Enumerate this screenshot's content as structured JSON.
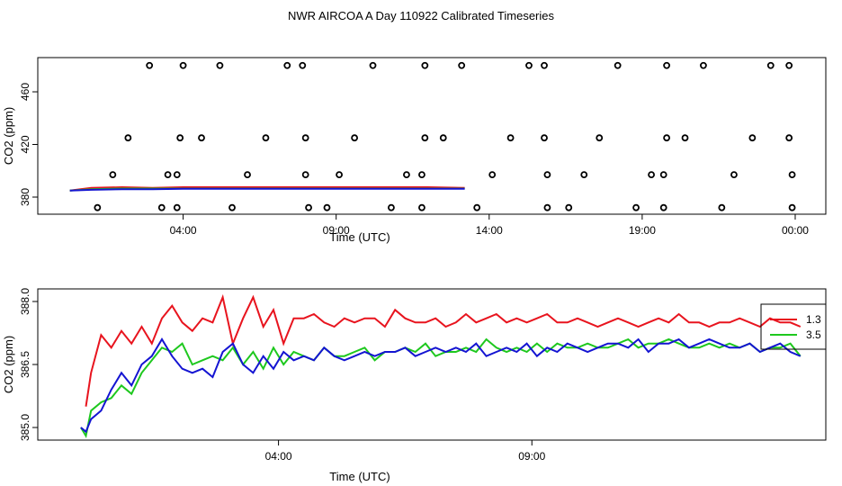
{
  "title": "NWR AIRCOA A  Day 110922  Calibrated Timeseries",
  "colors": {
    "red": "#e8141e",
    "green": "#1ec81e",
    "blue": "#1414d2",
    "axis": "#000000"
  },
  "chart_data": [
    {
      "type": "scatter",
      "xlabel": "Time (UTC)",
      "ylabel": "CO2 (ppm)",
      "xlim": [
        -0.75,
        25.0
      ],
      "ylim": [
        367,
        486
      ],
      "x_ticks": [
        {
          "value": 4,
          "label": "04:00"
        },
        {
          "value": 9,
          "label": "09:00"
        },
        {
          "value": 14,
          "label": "14:00"
        },
        {
          "value": 19,
          "label": "19:00"
        },
        {
          "value": 24,
          "label": "00:00"
        }
      ],
      "y_ticks": [
        {
          "value": 380,
          "label": "380"
        },
        {
          "value": 420,
          "label": "420"
        },
        {
          "value": 460,
          "label": "460"
        }
      ],
      "open_circles": [
        [
          1.2,
          372
        ],
        [
          1.7,
          397
        ],
        [
          2.2,
          425
        ],
        [
          2.9,
          480
        ],
        [
          3.3,
          372
        ],
        [
          3.5,
          397
        ],
        [
          3.8,
          397
        ],
        [
          3.9,
          425
        ],
        [
          4.0,
          480
        ],
        [
          3.8,
          372
        ],
        [
          4.6,
          425
        ],
        [
          5.2,
          480
        ],
        [
          5.6,
          372
        ],
        [
          6.1,
          397
        ],
        [
          6.7,
          425
        ],
        [
          7.4,
          480
        ],
        [
          7.9,
          480
        ],
        [
          8.0,
          425
        ],
        [
          8.0,
          397
        ],
        [
          8.1,
          372
        ],
        [
          8.7,
          372
        ],
        [
          9.1,
          397
        ],
        [
          9.6,
          425
        ],
        [
          10.2,
          480
        ],
        [
          10.8,
          372
        ],
        [
          11.3,
          397
        ],
        [
          11.8,
          397
        ],
        [
          11.9,
          425
        ],
        [
          11.9,
          480
        ],
        [
          11.8,
          372
        ],
        [
          12.5,
          425
        ],
        [
          13.1,
          480
        ],
        [
          13.6,
          372
        ],
        [
          14.1,
          397
        ],
        [
          14.7,
          425
        ],
        [
          15.3,
          480
        ],
        [
          15.8,
          480
        ],
        [
          15.8,
          425
        ],
        [
          15.9,
          397
        ],
        [
          15.9,
          372
        ],
        [
          16.6,
          372
        ],
        [
          17.1,
          397
        ],
        [
          17.6,
          425
        ],
        [
          18.2,
          480
        ],
        [
          18.8,
          372
        ],
        [
          19.3,
          397
        ],
        [
          19.7,
          397
        ],
        [
          19.8,
          425
        ],
        [
          19.8,
          480
        ],
        [
          19.7,
          372
        ],
        [
          20.4,
          425
        ],
        [
          21.0,
          480
        ],
        [
          21.6,
          372
        ],
        [
          22.0,
          397
        ],
        [
          22.6,
          425
        ],
        [
          23.2,
          480
        ],
        [
          23.8,
          480
        ],
        [
          23.8,
          425
        ],
        [
          23.9,
          397
        ],
        [
          23.9,
          372
        ]
      ],
      "series": [
        {
          "color": "red",
          "x": [
            0.3,
            1.0,
            2.0,
            3.0,
            4.0,
            6.0,
            8.0,
            10.0,
            12.0,
            13.2
          ],
          "y": [
            385,
            387,
            387.5,
            387,
            387.5,
            387.5,
            387.5,
            387.5,
            387.5,
            387
          ]
        },
        {
          "color": "green",
          "x": [
            0.3,
            1.0,
            2.0,
            3.0,
            4.0,
            6.0,
            8.0,
            10.0,
            12.0,
            13.2
          ],
          "y": [
            385,
            386,
            386.5,
            386.5,
            386.5,
            386.5,
            386.5,
            386.5,
            386.5,
            386.5
          ]
        },
        {
          "color": "blue",
          "x": [
            0.3,
            1.0,
            2.0,
            3.0,
            4.0,
            6.0,
            8.0,
            10.0,
            12.0,
            13.2
          ],
          "y": [
            385,
            385.5,
            386,
            386,
            386.3,
            386.3,
            386.3,
            386.3,
            386.3,
            386.3
          ]
        }
      ]
    },
    {
      "type": "line",
      "xlabel": "Time (UTC)",
      "ylabel": "CO2 (ppm)",
      "xlim": [
        -0.75,
        14.8
      ],
      "ylim": [
        384.7,
        388.3
      ],
      "x_ticks": [
        {
          "value": 4,
          "label": "04:00"
        },
        {
          "value": 9,
          "label": "09:00"
        }
      ],
      "y_ticks": [
        {
          "value": 385.0,
          "label": "385.0"
        },
        {
          "value": 386.5,
          "label": "386.5"
        },
        {
          "value": 388.0,
          "label": "388.0"
        }
      ],
      "legend": {
        "placement": "right",
        "entries": [
          {
            "label": "1.3",
            "color": "red"
          },
          {
            "label": "3.5",
            "color": "green"
          }
        ]
      },
      "series": [
        {
          "color": "red",
          "x": [
            0.2,
            0.3,
            0.5,
            0.7,
            0.9,
            1.1,
            1.3,
            1.5,
            1.7,
            1.9,
            2.1,
            2.3,
            2.5,
            2.7,
            2.9,
            3.1,
            3.3,
            3.5,
            3.7,
            3.9,
            4.1,
            4.3,
            4.5,
            4.7,
            4.9,
            5.1,
            5.3,
            5.5,
            5.7,
            5.9,
            6.1,
            6.3,
            6.5,
            6.7,
            6.9,
            7.1,
            7.3,
            7.5,
            7.7,
            7.9,
            8.1,
            8.3,
            8.5,
            8.7,
            8.9,
            9.1,
            9.3,
            9.5,
            9.7,
            9.9,
            10.1,
            10.3,
            10.5,
            10.7,
            10.9,
            11.1,
            11.3,
            11.5,
            11.7,
            11.9,
            12.1,
            12.3,
            12.5,
            12.7,
            12.9,
            13.1,
            13.3,
            13.5,
            13.7,
            13.9,
            14.1,
            14.3
          ],
          "y": [
            385.5,
            386.3,
            387.2,
            386.9,
            387.3,
            387.0,
            387.4,
            387.0,
            387.6,
            387.9,
            387.5,
            387.3,
            387.6,
            387.5,
            388.1,
            387.0,
            387.6,
            388.1,
            387.4,
            387.8,
            387.0,
            387.6,
            387.6,
            387.7,
            387.5,
            387.4,
            387.6,
            387.5,
            387.6,
            387.6,
            387.4,
            387.8,
            387.6,
            387.5,
            387.5,
            387.6,
            387.4,
            387.5,
            387.7,
            387.5,
            387.6,
            387.7,
            387.5,
            387.6,
            387.5,
            387.6,
            387.7,
            387.5,
            387.5,
            387.6,
            387.5,
            387.4,
            387.5,
            387.6,
            387.5,
            387.4,
            387.5,
            387.6,
            387.5,
            387.7,
            387.5,
            387.5,
            387.4,
            387.5,
            387.5,
            387.6,
            387.5,
            387.4,
            387.6,
            387.5,
            387.5,
            387.4
          ]
        },
        {
          "color": "green",
          "x": [
            0.1,
            0.2,
            0.3,
            0.5,
            0.7,
            0.9,
            1.1,
            1.3,
            1.5,
            1.7,
            1.9,
            2.1,
            2.3,
            2.5,
            2.7,
            2.9,
            3.1,
            3.3,
            3.5,
            3.7,
            3.9,
            4.1,
            4.3,
            4.5,
            4.7,
            4.9,
            5.1,
            5.3,
            5.5,
            5.7,
            5.9,
            6.1,
            6.3,
            6.5,
            6.7,
            6.9,
            7.1,
            7.3,
            7.5,
            7.7,
            7.9,
            8.1,
            8.3,
            8.5,
            8.7,
            8.9,
            9.1,
            9.3,
            9.5,
            9.7,
            9.9,
            10.1,
            10.3,
            10.5,
            10.7,
            10.9,
            11.1,
            11.3,
            11.5,
            11.7,
            11.9,
            12.1,
            12.3,
            12.5,
            12.7,
            12.9,
            13.1,
            13.3,
            13.5,
            13.7,
            13.9,
            14.1,
            14.3
          ],
          "y": [
            385.0,
            384.8,
            385.4,
            385.6,
            385.7,
            386.0,
            385.8,
            386.3,
            386.6,
            386.9,
            386.8,
            387.0,
            386.5,
            386.6,
            386.7,
            386.6,
            386.9,
            386.5,
            386.8,
            386.4,
            386.9,
            386.5,
            386.8,
            386.7,
            386.6,
            386.9,
            386.7,
            386.7,
            386.8,
            386.9,
            386.6,
            386.8,
            386.8,
            386.9,
            386.8,
            387.0,
            386.7,
            386.8,
            386.8,
            386.9,
            386.8,
            387.1,
            386.9,
            386.8,
            386.9,
            386.8,
            387.0,
            386.8,
            387.0,
            386.9,
            386.9,
            387.0,
            386.9,
            386.9,
            387.0,
            387.1,
            386.9,
            387.0,
            387.0,
            387.1,
            387.0,
            386.9,
            386.9,
            387.0,
            386.9,
            387.0,
            386.9,
            387.0,
            386.8,
            386.9,
            386.9,
            387.0,
            386.7
          ]
        },
        {
          "color": "blue",
          "x": [
            0.1,
            0.2,
            0.3,
            0.5,
            0.7,
            0.9,
            1.1,
            1.3,
            1.5,
            1.7,
            1.9,
            2.1,
            2.3,
            2.5,
            2.7,
            2.9,
            3.1,
            3.3,
            3.5,
            3.7,
            3.9,
            4.1,
            4.3,
            4.5,
            4.7,
            4.9,
            5.1,
            5.3,
            5.5,
            5.7,
            5.9,
            6.1,
            6.3,
            6.5,
            6.7,
            6.9,
            7.1,
            7.3,
            7.5,
            7.7,
            7.9,
            8.1,
            8.3,
            8.5,
            8.7,
            8.9,
            9.1,
            9.3,
            9.5,
            9.7,
            9.9,
            10.1,
            10.3,
            10.5,
            10.7,
            10.9,
            11.1,
            11.3,
            11.5,
            11.7,
            11.9,
            12.1,
            12.3,
            12.5,
            12.7,
            12.9,
            13.1,
            13.3,
            13.5,
            13.7,
            13.9,
            14.1,
            14.3
          ],
          "y": [
            385.0,
            384.9,
            385.2,
            385.4,
            385.9,
            386.3,
            386.0,
            386.5,
            386.7,
            387.1,
            386.7,
            386.4,
            386.3,
            386.4,
            386.2,
            386.8,
            387.0,
            386.5,
            386.3,
            386.7,
            386.4,
            386.8,
            386.6,
            386.7,
            386.6,
            386.9,
            386.7,
            386.6,
            386.7,
            386.8,
            386.7,
            386.8,
            386.8,
            386.9,
            386.7,
            386.8,
            386.9,
            386.8,
            386.9,
            386.8,
            387.0,
            386.7,
            386.8,
            386.9,
            386.8,
            387.0,
            386.7,
            386.9,
            386.8,
            387.0,
            386.9,
            386.8,
            386.9,
            387.0,
            387.0,
            386.9,
            387.1,
            386.8,
            387.0,
            387.0,
            387.1,
            386.9,
            387.0,
            387.1,
            387.0,
            386.9,
            386.9,
            387.0,
            386.8,
            386.9,
            387.0,
            386.8,
            386.7
          ]
        }
      ]
    }
  ]
}
